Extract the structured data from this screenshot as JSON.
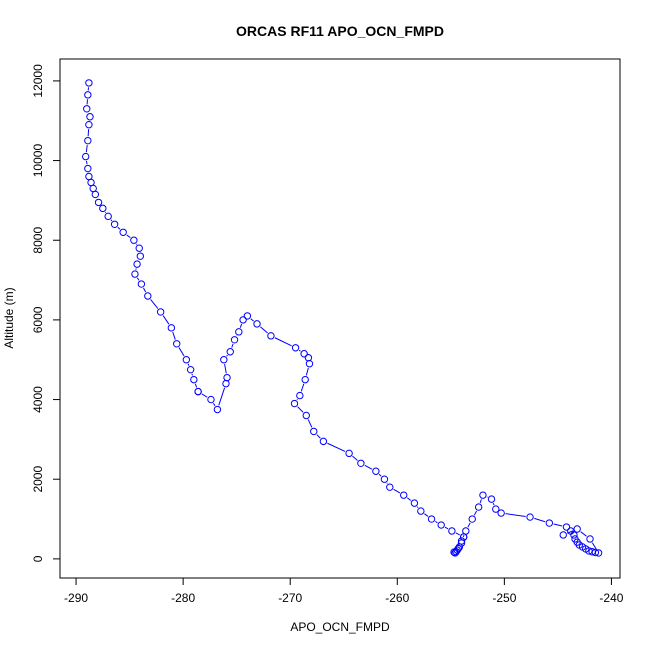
{
  "chart_data": {
    "type": "line",
    "title": "ORCAS RF11 APO_OCN_FMPD",
    "xlabel": "APO_OCN_FMPD",
    "ylabel": "Altitude (m)",
    "xlim": [
      -291.5,
      -239.2
    ],
    "ylim": [
      -480,
      12550
    ],
    "x_ticks": [
      -290,
      -280,
      -270,
      -260,
      -250,
      -240
    ],
    "x_tick_labels": [
      "-290",
      "-280",
      "-270",
      "-260",
      "-250",
      "-240"
    ],
    "y_ticks": [
      0,
      2000,
      4000,
      6000,
      8000,
      10000,
      12000
    ],
    "y_tick_labels": [
      "0",
      "2000",
      "4000",
      "6000",
      "8000",
      "10000",
      "12000"
    ],
    "grid": false,
    "legend": "none",
    "marker": "open-circle",
    "color": "#0000ff",
    "series": [
      {
        "x": [
          -288.8,
          -288.9,
          -289.0,
          -288.7,
          -288.8,
          -288.9,
          -289.1,
          -288.9,
          -288.8,
          -288.6,
          -288.4,
          -288.2,
          -287.9,
          -287.5,
          -287.0,
          -286.4,
          -285.6,
          -284.6,
          -284.1,
          -284.0,
          -284.3,
          -284.5,
          -283.9,
          -283.3,
          -282.1,
          -281.1,
          -280.6,
          -279.7,
          -279.3,
          -279.0,
          -278.6
        ],
        "y": [
          11950,
          11650,
          11300,
          11100,
          10900,
          10500,
          10100,
          9800,
          9600,
          9450,
          9300,
          9150,
          8950,
          8800,
          8600,
          8400,
          8200,
          8000,
          7800,
          7600,
          7400,
          7150,
          6900,
          6600,
          6200,
          5800,
          5400,
          5000,
          4750,
          4500,
          4200
        ]
      },
      {
        "x": [
          -278.6,
          -277.4,
          -276.8,
          -276.0,
          -275.9,
          -276.2,
          -275.6,
          -275.2,
          -274.8,
          -274.4,
          -274.0,
          -273.1,
          -271.8,
          -269.5,
          -268.7,
          -268.3,
          -268.2,
          -268.6,
          -269.1,
          -269.6,
          -268.5,
          -267.8,
          -266.9,
          -264.5,
          -263.4,
          -262.0,
          -261.2,
          -260.7,
          -259.4,
          -258.4,
          -257.8,
          -256.8,
          -255.9,
          -254.9,
          -253.8
        ],
        "y": [
          4200,
          4000,
          3750,
          4400,
          4550,
          5000,
          5200,
          5500,
          5700,
          6000,
          6100,
          5900,
          5600,
          5300,
          5150,
          5050,
          4900,
          4500,
          4100,
          3900,
          3600,
          3200,
          2950,
          2650,
          2400,
          2200,
          2000,
          1800,
          1600,
          1400,
          1200,
          1000,
          850,
          700,
          550
        ]
      },
      {
        "x": [
          -253.8,
          -254.0,
          -254.3,
          -254.5,
          -254.6,
          -254.7,
          -254.4,
          -254.2,
          -254.0,
          -253.6,
          -253.0,
          -252.4,
          -252.0,
          -251.2,
          -250.8,
          -250.3,
          -247.6,
          -245.8,
          -244.2,
          -243.8,
          -243.5,
          -243.4,
          -243.2,
          -243.0,
          -242.7,
          -242.4,
          -242.1,
          -241.8,
          -241.5,
          -241.2,
          -242.0,
          -243.2,
          -244.5
        ],
        "y": [
          550,
          400,
          260,
          180,
          150,
          170,
          220,
          300,
          450,
          700,
          1000,
          1300,
          1600,
          1500,
          1250,
          1150,
          1050,
          900,
          800,
          700,
          600,
          500,
          420,
          350,
          300,
          250,
          200,
          180,
          160,
          150,
          500,
          750,
          600
        ]
      }
    ]
  }
}
